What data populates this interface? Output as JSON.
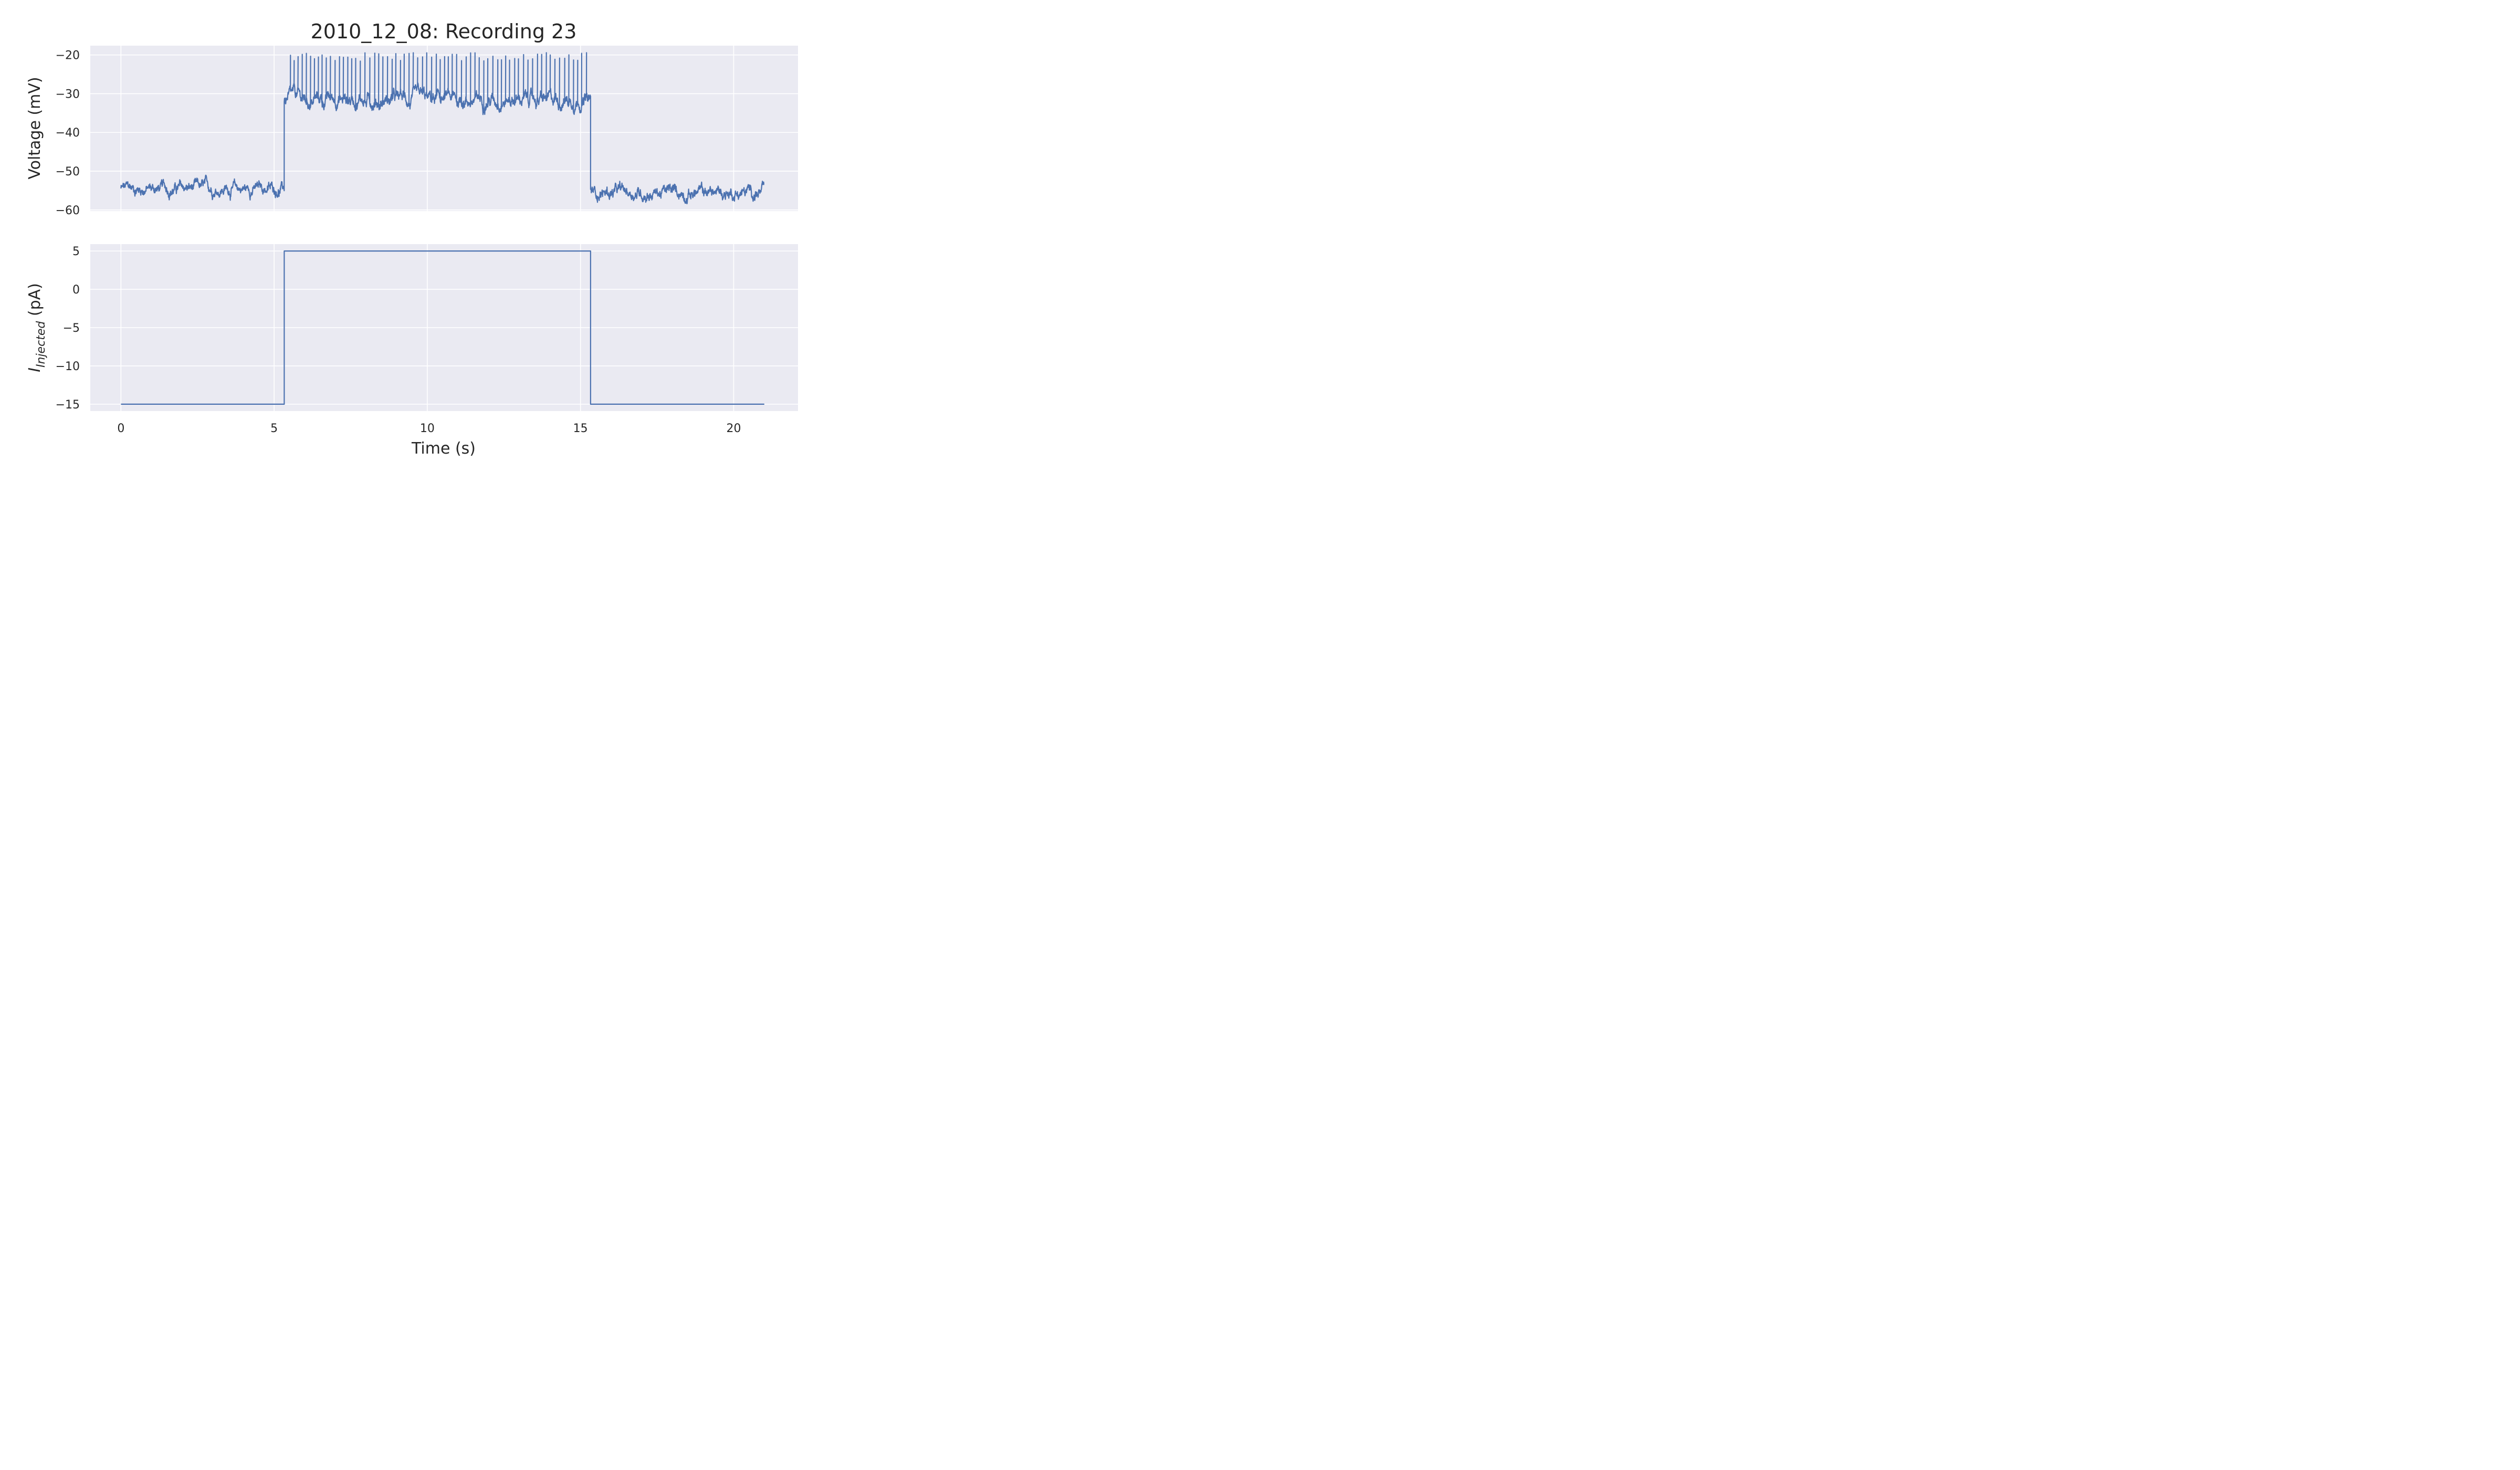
{
  "chart_data": [
    {
      "type": "line",
      "title": "2010_12_08: Recording 23",
      "xlabel": "",
      "ylabel": "Voltage (mV)",
      "xlim": [
        -1,
        22.1
      ],
      "ylim": [
        -60.3,
        -17.6
      ],
      "x_ticks": [
        0,
        5,
        10,
        15,
        20
      ],
      "x_tick_labels": [
        "",
        "",
        "",
        "",
        ""
      ],
      "y_ticks": [
        -60,
        -50,
        -40,
        -30,
        -20
      ],
      "y_tick_labels": [
        "−60",
        "−50",
        "−40",
        "−30",
        "−20"
      ],
      "grid": true,
      "series": [
        {
          "color": "#4c72b0",
          "segments": [
            {
              "x_start": 0,
              "x_end": 5.33,
              "baseline": -54.5,
              "noise": 2.4,
              "spikes_per_s": 0
            },
            {
              "x_start": 5.33,
              "x_end": 15.33,
              "baseline": -31.5,
              "noise": 3.0,
              "spikes_per_s": 7.2,
              "spike_peak": -20.5
            },
            {
              "x_start": 15.33,
              "x_end": 21.0,
              "baseline": -55.5,
              "noise": 2.6,
              "spikes_per_s": 0
            }
          ],
          "approx_range": [
            -58.8,
            -19.0
          ]
        }
      ]
    },
    {
      "type": "line",
      "title": "",
      "xlabel": "Time (s)",
      "ylabel_main": "I",
      "ylabel_sub": "Injected",
      "ylabel_unit": " (pA)",
      "xlim": [
        -1,
        22.1
      ],
      "ylim": [
        -15.9,
        5.9
      ],
      "x_ticks": [
        0,
        5,
        10,
        15,
        20
      ],
      "x_tick_labels": [
        "0",
        "5",
        "10",
        "15",
        "20"
      ],
      "y_ticks": [
        -15,
        -10,
        -5,
        0,
        5
      ],
      "y_tick_labels": [
        "−15",
        "−10",
        "−5",
        "0",
        "5"
      ],
      "grid": true,
      "series": [
        {
          "color": "#4c72b0",
          "x": [
            0,
            5.33,
            5.33,
            15.33,
            15.33,
            21.0
          ],
          "y": [
            -15,
            -15,
            5,
            5,
            -15,
            -15
          ]
        }
      ]
    }
  ],
  "style": {
    "plot_background": "#eaeaf2",
    "grid_color": "#ffffff",
    "line_color": "#4c72b0"
  }
}
